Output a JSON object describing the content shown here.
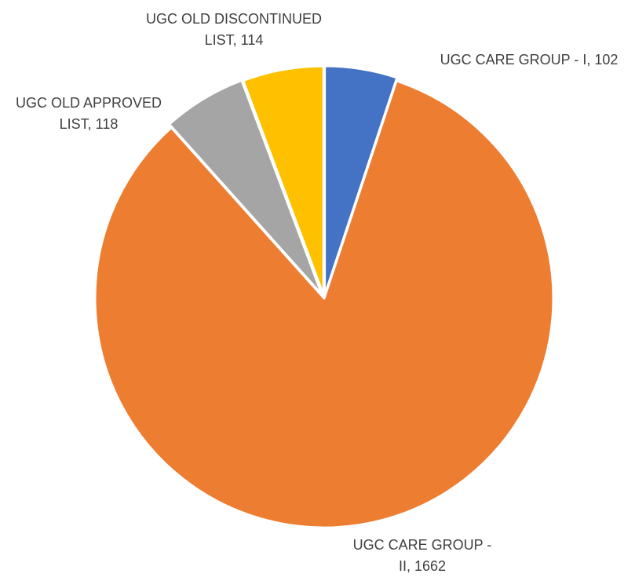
{
  "chart_data": {
    "type": "pie",
    "title": "",
    "slices": [
      {
        "label": "UGC CARE GROUP - I",
        "value": 102,
        "color": "#4472C4",
        "data_label": [
          "UGC CARE GROUP - I, 102"
        ]
      },
      {
        "label": "UGC CARE GROUP - II",
        "value": 1662,
        "color": "#ED7D31",
        "data_label": [
          "UGC CARE GROUP -",
          "II, 1662"
        ]
      },
      {
        "label": "UGC OLD APPROVED LIST",
        "value": 118,
        "color": "#A5A5A5",
        "data_label": [
          "UGC OLD APPROVED",
          "LIST, 118"
        ]
      },
      {
        "label": "UGC OLD DISCONTINUED LIST",
        "value": 114,
        "color": "#FFC000",
        "data_label": [
          "UGC OLD DISCONTINUED",
          "LIST, 114"
        ]
      }
    ],
    "legend": "none",
    "exploded": true
  }
}
